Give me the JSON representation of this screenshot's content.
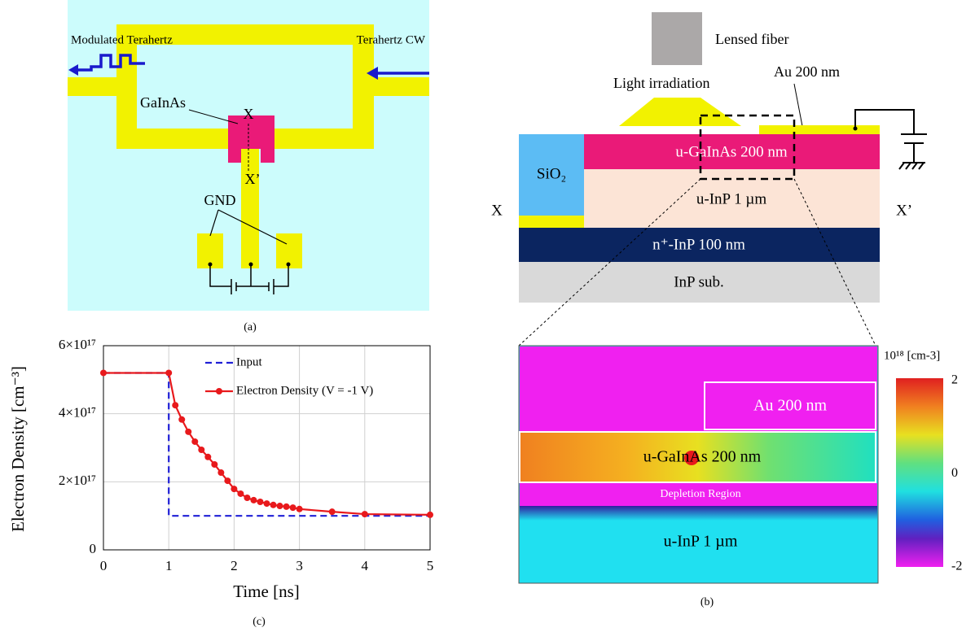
{
  "panel_a": {
    "modulated": "Modulated Terahertz",
    "cw": "Terahertz CW",
    "material": "GaInAs",
    "x": "X",
    "x_prime": "X’",
    "gnd": "GND",
    "caption": "(a)"
  },
  "panel_b": {
    "lensed_fiber": "Lensed fiber",
    "light": "Light irradiation",
    "au": "Au 200 nm",
    "gainas": "u-GaInAs 200 nm",
    "inp": "u-InP 1 µm",
    "n_inp": "n⁺-InP 100 nm",
    "sub": "InP sub.",
    "sio2": "SiO₂",
    "x": "X",
    "x_prime": "X’",
    "sim": {
      "au": "Au 200 nm",
      "gainas": "u-GaInAs 200 nm",
      "depletion": "Depletion Region",
      "inp": "u-InP 1 µm",
      "colorbar_title": "10¹⁸ [cm-3]",
      "colorbar_range": [
        -2,
        2
      ],
      "colorbar_ticks": [
        2,
        0,
        -2
      ]
    },
    "caption": "(b)"
  },
  "chart_data": {
    "type": "line",
    "xlabel": "Time [ns]",
    "ylabel": "Electron Density [cm⁻³]",
    "caption": "(c)",
    "xlim": [
      0,
      5
    ],
    "xticks": [
      0,
      1,
      2,
      3,
      4,
      5
    ],
    "ylim": [
      0,
      6e+17
    ],
    "yticks": [
      0,
      {
        "value": 2e+17,
        "label": "2×10¹⁷"
      },
      {
        "value": 4e+17,
        "label": "4×10¹⁷"
      },
      {
        "value": 6e+17,
        "label": "6×10¹⁷"
      }
    ],
    "grid": true,
    "legend": "upper left",
    "series": [
      {
        "name": "Input",
        "color": "#1f1fd6",
        "dashed": true,
        "markers": false,
        "x": [
          0,
          1,
          1,
          5
        ],
        "values": [
          5.2e+17,
          5.2e+17,
          1e+17,
          1e+17
        ]
      },
      {
        "name": "Electron Density (V = -1 V)",
        "color": "#e8191c",
        "dashed": false,
        "markers": true,
        "x": [
          0,
          1,
          1.1,
          1.2,
          1.3,
          1.4,
          1.5,
          1.6,
          1.7,
          1.8,
          1.9,
          2.0,
          2.1,
          2.2,
          2.3,
          2.4,
          2.5,
          2.6,
          2.7,
          2.8,
          2.9,
          3.0,
          3.5,
          4,
          5
        ],
        "values": [
          5.2e+17,
          5.2e+17,
          4.25e+17,
          3.83e+17,
          3.47e+17,
          3.18e+17,
          2.94e+17,
          2.73e+17,
          2.51e+17,
          2.27e+17,
          2.03e+17,
          1.79e+17,
          1.65e+17,
          1.53e+17,
          1.46e+17,
          1.41e+17,
          1.36e+17,
          1.32e+17,
          1.29e+17,
          1.27e+17,
          1.24e+17,
          1.2e+17,
          1.12e+17,
          1.05e+17,
          1.03e+17
        ]
      }
    ]
  }
}
